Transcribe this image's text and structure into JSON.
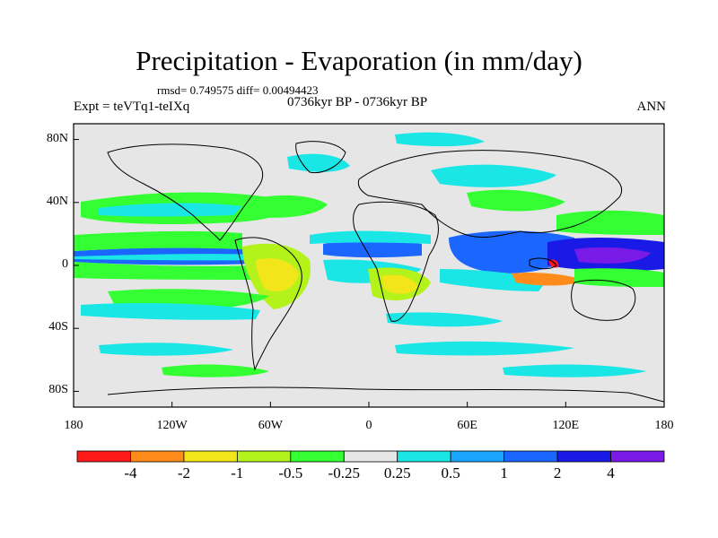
{
  "title": "Precipitation - Evaporation (in mm/day)",
  "stats": "rmsd= 0.749575  diff= 0.00494423",
  "period": "0736kyr BP - 0736kyr BP",
  "expt": "Expt = teVTq1-teIXq",
  "season": "ANN",
  "lat_labels": [
    "80N",
    "40N",
    "0",
    "40S",
    "80S"
  ],
  "lat_values": [
    80,
    40,
    0,
    -40,
    -80
  ],
  "lon_labels": [
    "180",
    "120W",
    "60W",
    "0",
    "60E",
    "120E",
    "180"
  ],
  "lon_values": [
    -180,
    -120,
    -60,
    0,
    60,
    120,
    180
  ],
  "colorbar": {
    "labels": [
      "-4",
      "-2",
      "-1",
      "-0.5",
      "-0.25",
      "0.25",
      "0.5",
      "1",
      "2",
      "4"
    ],
    "colors": [
      "#ff1a1a",
      "#ff8c1a",
      "#f2e61a",
      "#b3f21a",
      "#33ff33",
      "#e6e6e6",
      "#1ae6e6",
      "#1aa6ff",
      "#1a66ff",
      "#1a1ae6",
      "#7a1ae6"
    ]
  }
}
